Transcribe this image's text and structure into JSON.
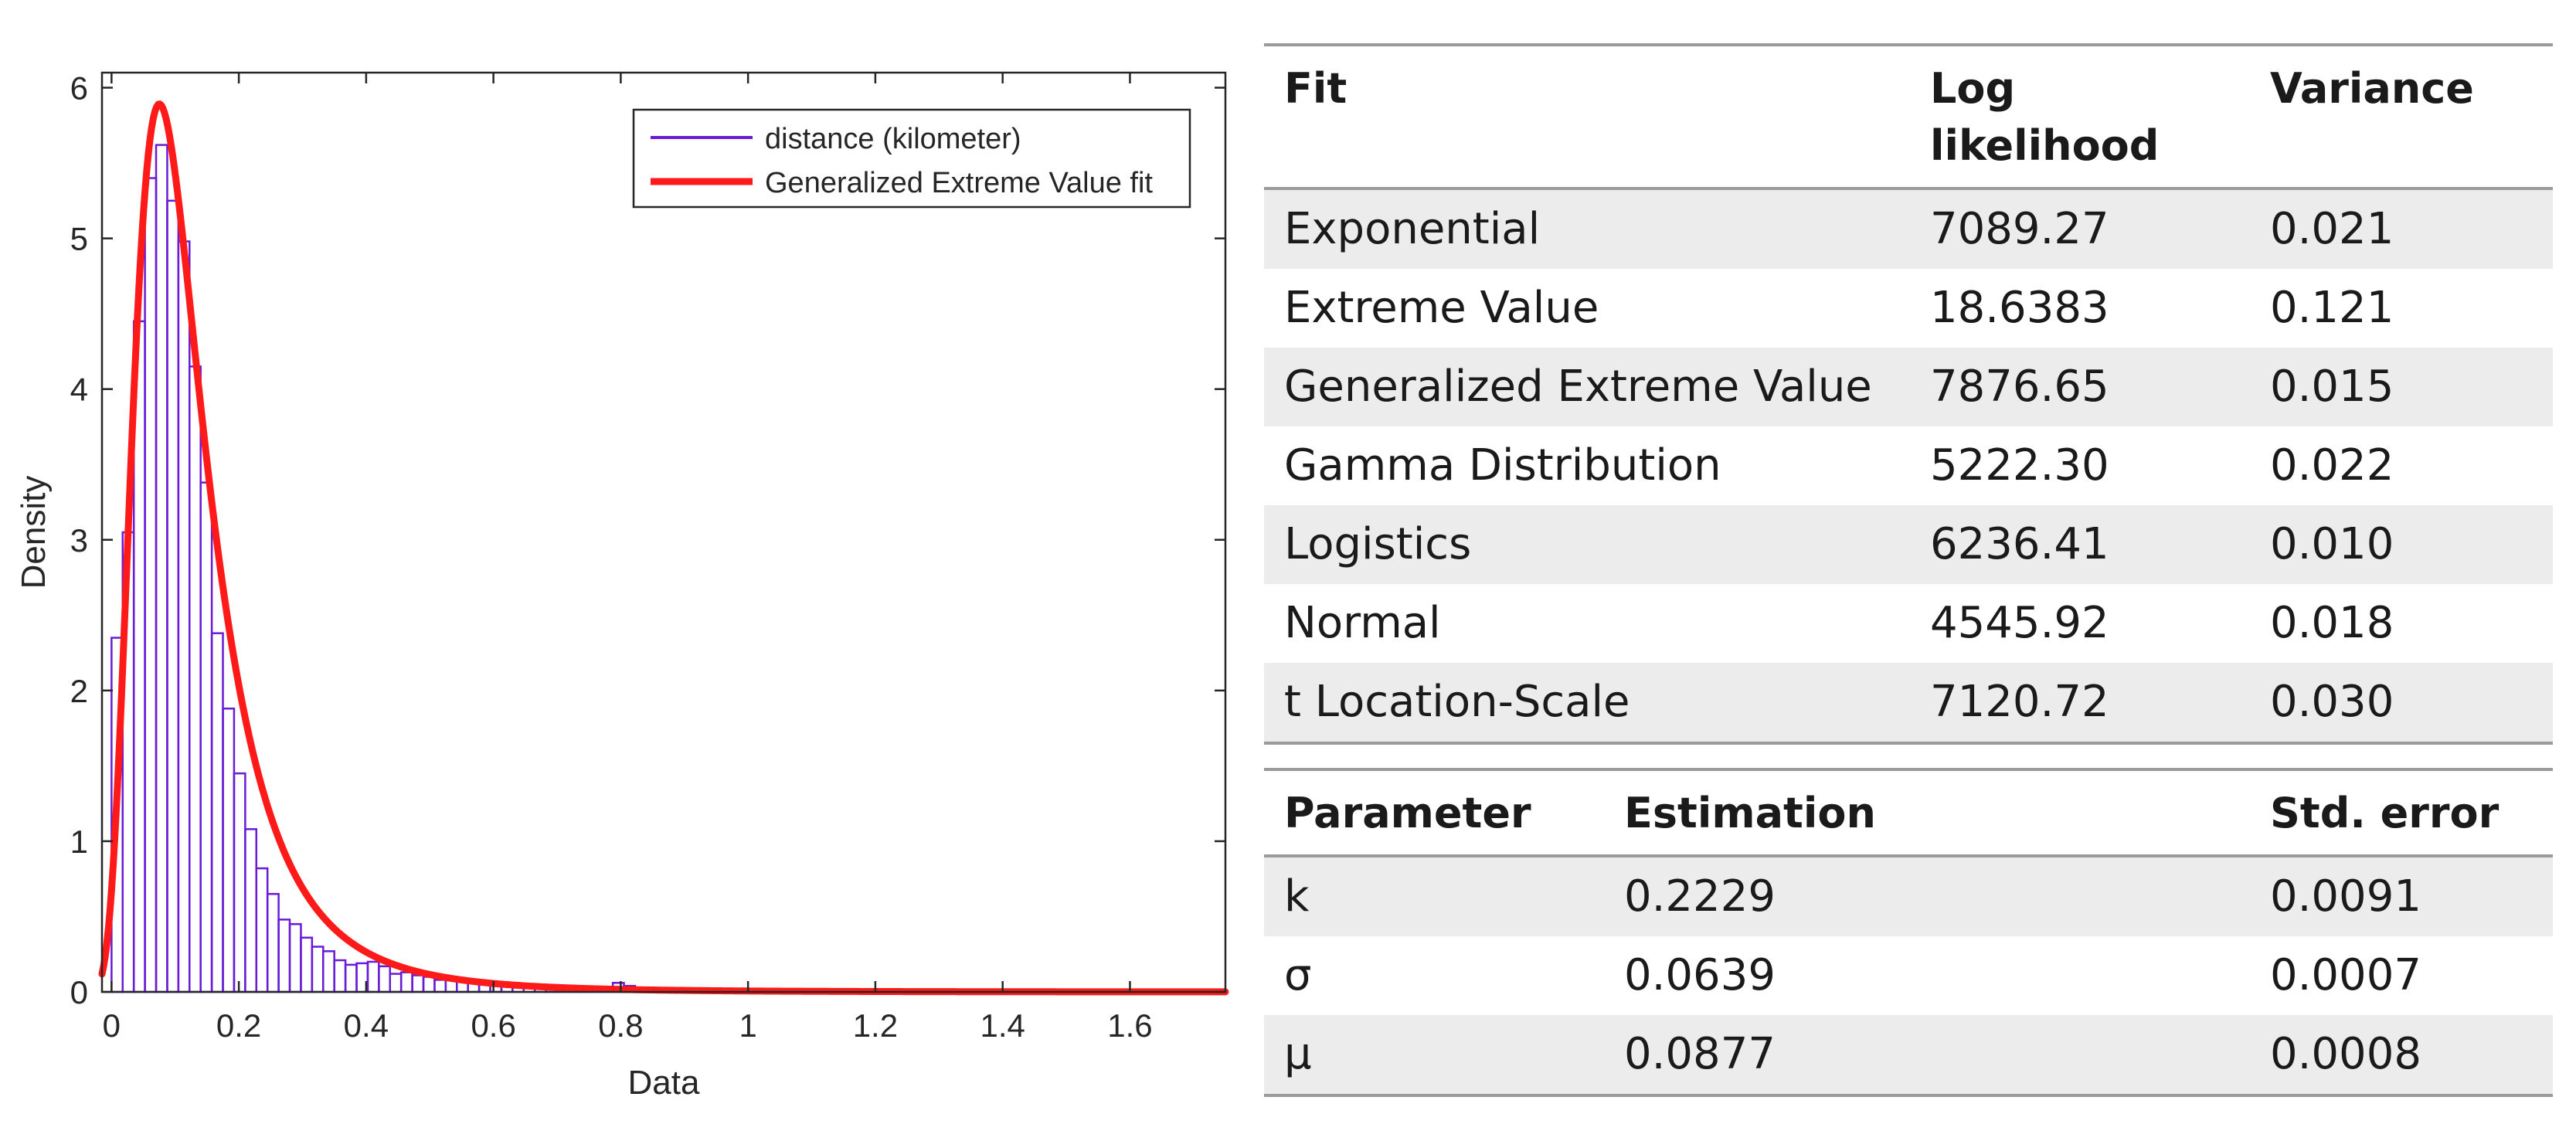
{
  "chart_data": {
    "type": "histogram",
    "xlabel": "Data",
    "ylabel": "Density",
    "xlim": [
      -0.015,
      1.75
    ],
    "ylim": [
      0,
      6.1
    ],
    "xticks": [
      0,
      0.2,
      0.4,
      0.6,
      0.8,
      1,
      1.2,
      1.4,
      1.6
    ],
    "xtick_labels": [
      "0",
      "0.2",
      "0.4",
      "0.6",
      "0.8",
      "1",
      "1.2",
      "1.4",
      "1.6"
    ],
    "yticks": [
      0,
      1,
      2,
      3,
      4,
      5,
      6
    ],
    "ytick_labels": [
      "0",
      "1",
      "2",
      "3",
      "4",
      "5",
      "6"
    ],
    "grid": false,
    "legend_position": "top-right",
    "legend": [
      {
        "label": "distance (kilometer)",
        "color": "#6a1bd8"
      },
      {
        "label": "Generalized Extreme Value fit",
        "color": "#ff1a1a"
      }
    ],
    "histogram": {
      "bin_start": 0,
      "bin_width": 0.0175,
      "densities": [
        2.35,
        3.05,
        4.45,
        5.4,
        5.62,
        5.25,
        4.98,
        4.15,
        3.38,
        2.38,
        1.88,
        1.45,
        1.08,
        0.82,
        0.65,
        0.48,
        0.45,
        0.36,
        0.3,
        0.27,
        0.21,
        0.18,
        0.19,
        0.2,
        0.17,
        0.12,
        0.13,
        0.11,
        0.1,
        0.08,
        0.08,
        0.07,
        0.06,
        0.06,
        0.05,
        0.05,
        0.04,
        0.04,
        0.04,
        0.03,
        0.03,
        0.02,
        0.02,
        0.02,
        0.02,
        0.06,
        0.04,
        0.02,
        0.01,
        0.02,
        0.01,
        0.02,
        0.01,
        0.02,
        0.01,
        0.01,
        0.01,
        0.0,
        0.0,
        0.01,
        0.01,
        0.01,
        0.0,
        0.01,
        0.0,
        0.0,
        0.0,
        0.0,
        0.0,
        0.0,
        0.0,
        0.0,
        0.0,
        0.0,
        0.0,
        0.0,
        0.0,
        0.0,
        0.0,
        0.0
      ],
      "color": "#6a1bd8"
    },
    "fit": {
      "name": "Generalized Extreme Value fit",
      "k": 0.2229,
      "sigma": 0.0639,
      "mu": 0.0877,
      "color": "#ff1a1a"
    }
  },
  "fit_table": {
    "headers": [
      "Fit",
      "Log likelihood",
      "Variance"
    ],
    "rows": [
      {
        "fit": "Exponential",
        "loglik": "7089.27",
        "variance": "0.021"
      },
      {
        "fit": "Extreme Value",
        "loglik": "18.6383",
        "variance": "0.121"
      },
      {
        "fit": "Generalized Extreme Value",
        "loglik": "7876.65",
        "variance": "0.015"
      },
      {
        "fit": "Gamma Distribution",
        "loglik": "5222.30",
        "variance": "0.022"
      },
      {
        "fit": "Logistics",
        "loglik": "6236.41",
        "variance": "0.010"
      },
      {
        "fit": "Normal",
        "loglik": "4545.92",
        "variance": "0.018"
      },
      {
        "fit": "t Location-Scale",
        "loglik": "7120.72",
        "variance": "0.030"
      }
    ]
  },
  "param_table": {
    "headers": [
      "Parameter",
      "Estimation",
      "Std. error"
    ],
    "rows": [
      {
        "param": "k",
        "estimation": "0.2229",
        "stderr": "0.0091"
      },
      {
        "param": "σ",
        "estimation": "0.0639",
        "stderr": "0.0007"
      },
      {
        "param": "μ",
        "estimation": "0.0877",
        "stderr": "0.0008"
      }
    ]
  }
}
